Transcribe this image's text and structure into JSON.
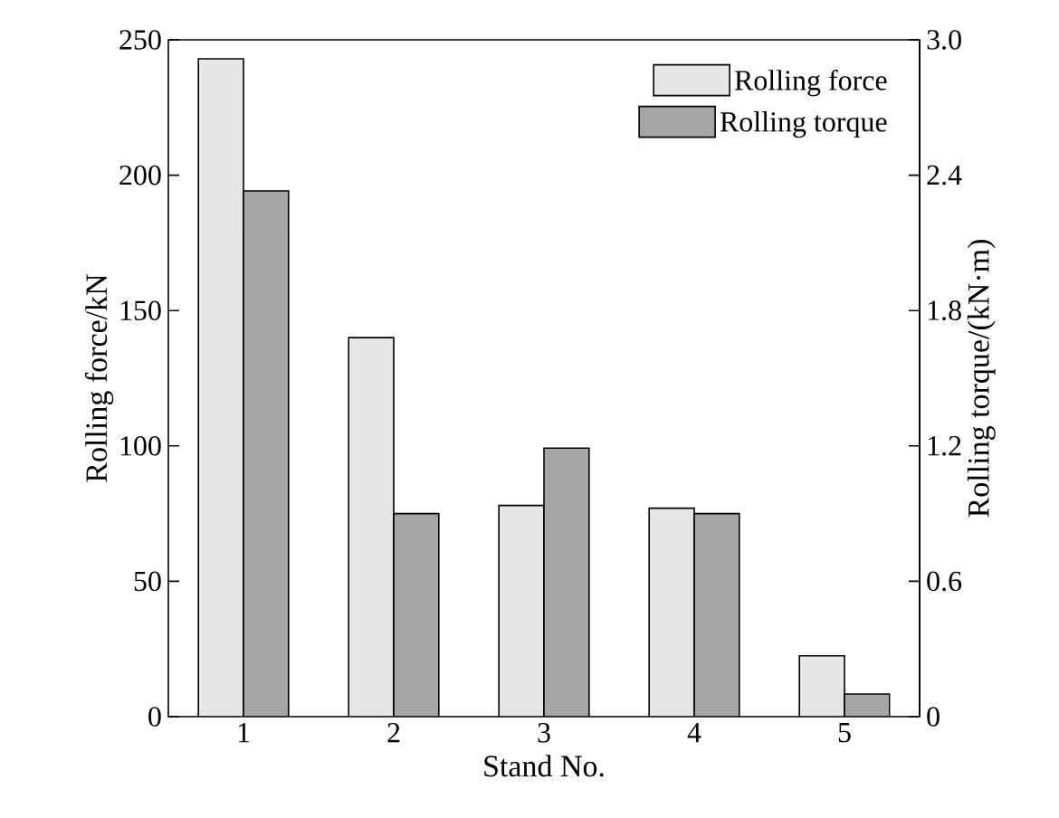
{
  "chart_data": {
    "type": "bar",
    "xlabel": "Stand No.",
    "ylabel": "Rolling force/kN",
    "y2label": "Rolling torque/(kN·m)",
    "categories": [
      "1",
      "2",
      "3",
      "4",
      "5"
    ],
    "series": [
      {
        "name": "Rolling force",
        "color": "#e6e6e6",
        "values": [
          243,
          140,
          78,
          77,
          22.5
        ]
      },
      {
        "name": "Rolling torque",
        "color": "#a6a6a6",
        "axis": "y2",
        "values": [
          2.33,
          0.9,
          1.19,
          0.9,
          0.1
        ]
      }
    ],
    "ylim": [
      0,
      250
    ],
    "yticks": [
      0,
      50,
      100,
      150,
      200,
      250
    ],
    "y2lim": [
      0,
      3.0
    ],
    "y2ticks": [
      0,
      {
        "value": 0.6,
        "label": "0.6"
      },
      {
        "value": 1.2,
        "label": "1.2"
      },
      {
        "value": 1.8,
        "label": "1.8"
      },
      {
        "value": 2.4,
        "label": "2.4"
      },
      {
        "value": 3.0,
        "label": "3.0"
      }
    ],
    "legend": "top right",
    "grid": false
  }
}
